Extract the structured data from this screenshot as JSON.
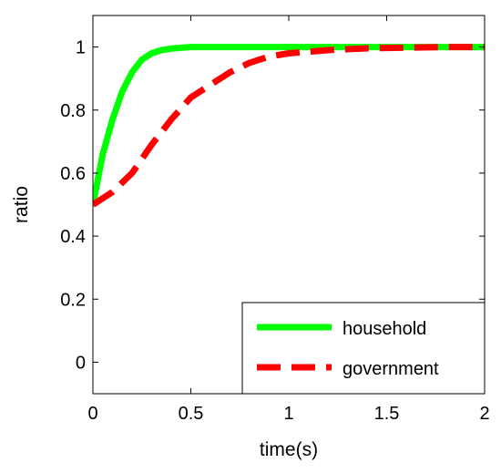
{
  "chart_data": {
    "type": "line",
    "xlabel": "time(s)",
    "ylabel": "ratio",
    "xlim": [
      0,
      2
    ],
    "ylim": [
      -0.1,
      1.1
    ],
    "x_ticks": [
      "0",
      "0.5",
      "1",
      "1.5",
      "2"
    ],
    "y_ticks": [
      "0",
      "0.2",
      "0.4",
      "0.6",
      "0.8",
      "1"
    ],
    "legend_position": "bottom-right",
    "series": [
      {
        "name": "household",
        "color": "#00ff00",
        "style": "solid",
        "x": [
          0,
          0.05,
          0.1,
          0.15,
          0.2,
          0.25,
          0.3,
          0.35,
          0.4,
          0.5,
          0.6,
          0.8,
          1.0,
          1.5,
          2.0
        ],
        "y": [
          0.5,
          0.66,
          0.77,
          0.86,
          0.92,
          0.96,
          0.98,
          0.99,
          0.995,
          1.0,
          1.0,
          1.0,
          1.0,
          1.0,
          1.0
        ]
      },
      {
        "name": "government",
        "color": "#ff0000",
        "style": "dashed",
        "x": [
          0,
          0.1,
          0.2,
          0.3,
          0.4,
          0.5,
          0.6,
          0.7,
          0.8,
          0.9,
          1.0,
          1.1,
          1.2,
          1.4,
          1.6,
          1.8,
          2.0
        ],
        "y": [
          0.5,
          0.54,
          0.6,
          0.69,
          0.77,
          0.84,
          0.88,
          0.92,
          0.95,
          0.97,
          0.98,
          0.985,
          0.99,
          0.996,
          0.998,
          1.0,
          1.0
        ]
      }
    ]
  }
}
